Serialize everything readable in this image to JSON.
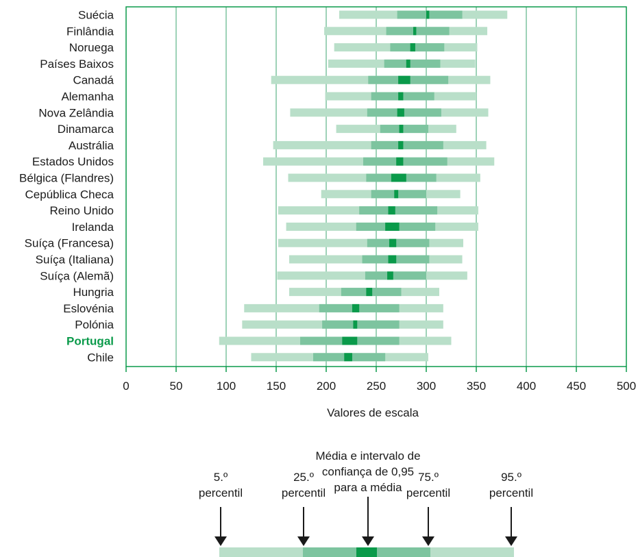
{
  "chart_data": {
    "type": "box-range",
    "xlabel": "Valores de escala",
    "xlim": [
      0,
      500
    ],
    "xticks": [
      0,
      50,
      100,
      150,
      200,
      250,
      300,
      350,
      400,
      450,
      500
    ],
    "grid": true,
    "highlight_country": "Portugal",
    "colors": {
      "outer": "#b9dfc9",
      "inner": "#7dc49f",
      "ci": "#0a9a4a",
      "axis": "#0a9a4a",
      "grid": "#7dc49f"
    },
    "series_fields": [
      "p5",
      "p25",
      "mean_lo",
      "mean_hi",
      "p75",
      "p95"
    ],
    "countries": [
      {
        "name": "Suécia",
        "p5": 213,
        "p25": 271,
        "mean_lo": 300,
        "mean_hi": 303,
        "p75": 336,
        "p95": 381
      },
      {
        "name": "Finlândia",
        "p5": 198,
        "p25": 260,
        "mean_lo": 287,
        "mean_hi": 290,
        "p75": 323,
        "p95": 361
      },
      {
        "name": "Noruega",
        "p5": 208,
        "p25": 264,
        "mean_lo": 284,
        "mean_hi": 289,
        "p75": 318,
        "p95": 351
      },
      {
        "name": "Países Baixos",
        "p5": 202,
        "p25": 258,
        "mean_lo": 280,
        "mean_hi": 284,
        "p75": 314,
        "p95": 349
      },
      {
        "name": "Canadá",
        "p5": 145,
        "p25": 242,
        "mean_lo": 272,
        "mean_hi": 284,
        "p75": 322,
        "p95": 364
      },
      {
        "name": "Alemanha",
        "p5": 199,
        "p25": 245,
        "mean_lo": 272,
        "mean_hi": 277,
        "p75": 308,
        "p95": 350
      },
      {
        "name": "Nova Zelândia",
        "p5": 164,
        "p25": 241,
        "mean_lo": 271,
        "mean_hi": 278,
        "p75": 315,
        "p95": 362
      },
      {
        "name": "Dinamarca",
        "p5": 210,
        "p25": 254,
        "mean_lo": 273,
        "mean_hi": 277,
        "p75": 302,
        "p95": 330
      },
      {
        "name": "Austrália",
        "p5": 147,
        "p25": 245,
        "mean_lo": 272,
        "mean_hi": 277,
        "p75": 317,
        "p95": 360
      },
      {
        "name": "Estados Unidos",
        "p5": 137,
        "p25": 237,
        "mean_lo": 270,
        "mean_hi": 277,
        "p75": 321,
        "p95": 368
      },
      {
        "name": "Bélgica (Flandres)",
        "p5": 162,
        "p25": 240,
        "mean_lo": 265,
        "mean_hi": 280,
        "p75": 310,
        "p95": 354
      },
      {
        "name": "Cepública Checa",
        "p5": 195,
        "p25": 245,
        "mean_lo": 268,
        "mean_hi": 272,
        "p75": 300,
        "p95": 334
      },
      {
        "name": "Reino Unido",
        "p5": 152,
        "p25": 233,
        "mean_lo": 262,
        "mean_hi": 269,
        "p75": 311,
        "p95": 352
      },
      {
        "name": "Irelanda",
        "p5": 160,
        "p25": 230,
        "mean_lo": 259,
        "mean_hi": 273,
        "p75": 309,
        "p95": 352
      },
      {
        "name": "Suíça (Francesa)",
        "p5": 152,
        "p25": 241,
        "mean_lo": 263,
        "mean_hi": 270,
        "p75": 303,
        "p95": 337
      },
      {
        "name": "Suíça (Italiana)",
        "p5": 163,
        "p25": 236,
        "mean_lo": 262,
        "mean_hi": 270,
        "p75": 303,
        "p95": 336
      },
      {
        "name": "Suíça (Alemã)",
        "p5": 151,
        "p25": 239,
        "mean_lo": 261,
        "mean_hi": 267,
        "p75": 300,
        "p95": 341
      },
      {
        "name": "Hungria",
        "p5": 163,
        "p25": 215,
        "mean_lo": 240,
        "mean_hi": 246,
        "p75": 275,
        "p95": 313
      },
      {
        "name": "Eslovénia",
        "p5": 118,
        "p25": 193,
        "mean_lo": 226,
        "mean_hi": 233,
        "p75": 273,
        "p95": 317
      },
      {
        "name": "Polónia",
        "p5": 116,
        "p25": 196,
        "mean_lo": 227,
        "mean_hi": 231,
        "p75": 273,
        "p95": 317
      },
      {
        "name": "Portugal",
        "p5": 93,
        "p25": 174,
        "mean_lo": 216,
        "mean_hi": 231,
        "p75": 273,
        "p95": 325
      },
      {
        "name": "Chile",
        "p5": 125,
        "p25": 187,
        "mean_lo": 218,
        "mean_hi": 226,
        "p75": 259,
        "p95": 302
      }
    ]
  },
  "legend": {
    "title": "Média e intervalo de confiança de 0,95 para a média",
    "title_lines": [
      "Média e intervalo de",
      "confiança de 0,95",
      "para a média"
    ],
    "p5": {
      "line1": "5.º",
      "line2": "percentil"
    },
    "p25": {
      "line1": "25.º",
      "line2": "percentil"
    },
    "p75": {
      "line1": "75.º",
      "line2": "percentil"
    },
    "p95": {
      "line1": "95.º",
      "line2": "percentil"
    }
  }
}
